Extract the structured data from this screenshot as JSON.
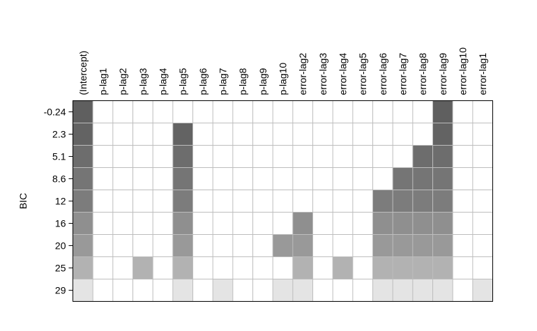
{
  "chart_data": {
    "type": "heatmap",
    "ylabel": "BIC",
    "columns": [
      "(Intercept)",
      "p-lag1",
      "p-lag2",
      "p-lag3",
      "p-lag4",
      "p-lag5",
      "p-lag6",
      "p-lag7",
      "p-lag8",
      "p-lag9",
      "p-lag10",
      "error-lag2",
      "error-lag3",
      "error-lag4",
      "error-lag5",
      "error-lag6",
      "error-lag7",
      "error-lag8",
      "error-lag9",
      "error-lag10",
      "error-lag1"
    ],
    "rows": [
      "-0.24",
      "2.3",
      "5.1",
      "8.6",
      "12",
      "16",
      "20",
      "25",
      "29"
    ],
    "included": [
      [
        0,
        18
      ],
      [
        0,
        5,
        18
      ],
      [
        0,
        5,
        17,
        18
      ],
      [
        0,
        5,
        16,
        17,
        18
      ],
      [
        0,
        5,
        15,
        16,
        17,
        18
      ],
      [
        0,
        5,
        11,
        15,
        16,
        17,
        18
      ],
      [
        0,
        5,
        10,
        11,
        15,
        16,
        17,
        18
      ],
      [
        0,
        3,
        5,
        11,
        13,
        15,
        16,
        17,
        18
      ],
      [
        0,
        5,
        7,
        10,
        11,
        15,
        16,
        17,
        18,
        20
      ]
    ],
    "row_colors": [
      "#5f5f5f",
      "#636363",
      "#6d6d6d",
      "#757575",
      "#7c7c7c",
      "#8f8f8f",
      "#999999",
      "#b2b2b2",
      "#e4e4e4"
    ],
    "grid": true,
    "legend": "none"
  }
}
